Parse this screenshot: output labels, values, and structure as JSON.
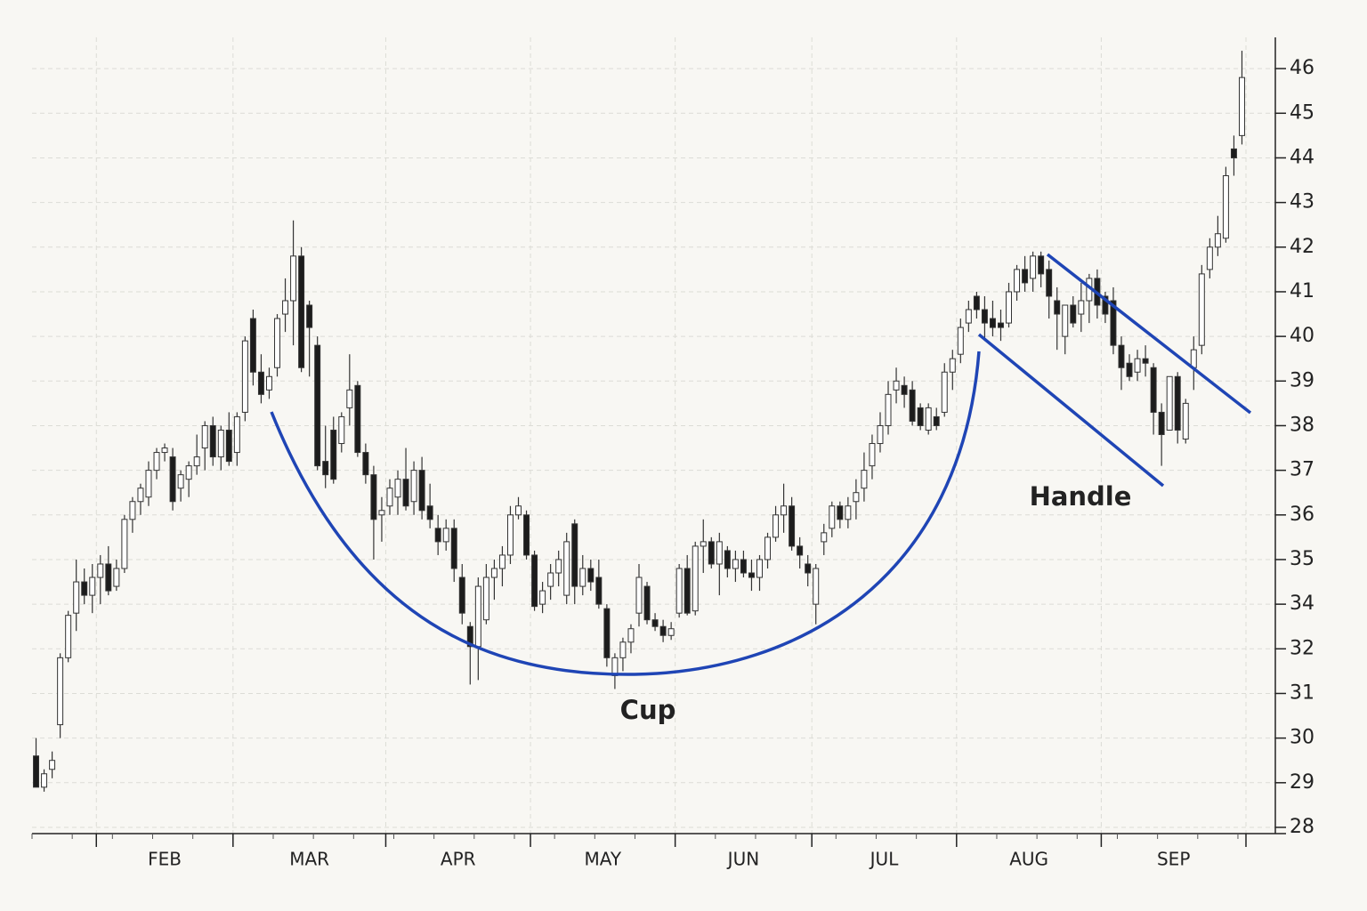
{
  "chart_data": {
    "type": "candlestick",
    "annotations": [
      "Cup",
      "Handle"
    ],
    "categories": [
      null,
      null,
      null,
      null,
      null,
      null,
      null,
      null,
      "FEB",
      "FEB",
      "FEB",
      "FEB",
      "FEB",
      "FEB",
      "FEB",
      "FEB",
      "FEB",
      "FEB",
      "FEB",
      "FEB",
      "FEB",
      "FEB",
      "FEB",
      "FEB",
      "FEB",
      "MAR",
      "MAR",
      "MAR",
      "MAR",
      "MAR",
      "MAR",
      "MAR",
      "MAR",
      "MAR",
      "MAR",
      "MAR",
      "MAR",
      "MAR",
      "MAR",
      "MAR",
      "MAR",
      "MAR",
      "MAR",
      "MAR",
      "APR",
      "APR",
      "APR",
      "APR",
      "APR",
      "APR",
      "APR",
      "APR",
      "APR",
      "APR",
      "APR",
      "APR",
      "APR",
      "APR",
      "APR",
      "APR",
      "APR",
      "APR",
      "MAY",
      "MAY",
      "MAY",
      "MAY",
      "MAY",
      "MAY",
      "MAY",
      "MAY",
      "MAY",
      "MAY",
      "MAY",
      "MAY",
      "MAY",
      "MAY",
      "MAY",
      "MAY",
      "MAY",
      "MAY",
      "JUN",
      "JUN",
      "JUN",
      "JUN",
      "JUN",
      "JUN",
      "JUN",
      "JUN",
      "JUN",
      "JUN",
      "JUN",
      "JUN",
      "JUN",
      "JUN",
      "JUN",
      "JUN",
      "JUN",
      "JUL",
      "JUL",
      "JUL",
      "JUL",
      "JUL",
      "JUL",
      "JUL",
      "JUL",
      "JUL",
      "JUL",
      "JUL",
      "JUL",
      "JUL",
      "JUL",
      "JUL",
      "JUL",
      "JUL",
      "JUL",
      "AUG",
      "AUG",
      "AUG",
      "AUG",
      "AUG",
      "AUG",
      "AUG",
      "AUG",
      "AUG",
      "AUG",
      "AUG",
      "AUG",
      "AUG",
      "AUG",
      "AUG",
      "AUG",
      "AUG",
      "AUG",
      "SEP",
      "SEP",
      "SEP",
      "SEP",
      "SEP",
      "SEP",
      "SEP",
      "SEP",
      "SEP",
      "SEP",
      "SEP",
      "SEP",
      "SEP",
      "SEP",
      "SEP",
      "SEP",
      "SEP",
      "SEP"
    ],
    "open": [
      29.6,
      28.9,
      29.3,
      30.3,
      31.8,
      33.6,
      34.5,
      34.2,
      34.6,
      34.9,
      34.4,
      34.8,
      35.9,
      36.3,
      36.4,
      37,
      37.4,
      37.3,
      36.6,
      36.8,
      37.1,
      37.5,
      38,
      37.3,
      37.9,
      37.4,
      38.3,
      40.4,
      39.2,
      38.8,
      39.3,
      40.5,
      40.8,
      41.8,
      40.7,
      39.8,
      37.2,
      37.9,
      37.6,
      38.4,
      38.9,
      37.4,
      36.9,
      36,
      36.2,
      36.4,
      36.8,
      36.3,
      37.0,
      36.2,
      35.7,
      35.4,
      35.7,
      34.6,
      33,
      32.1,
      33.3,
      34.6,
      34.8,
      35.1,
      36,
      36,
      35.1,
      34,
      34.4,
      34.7,
      34.2,
      35.8,
      34.4,
      34.8,
      34.6,
      33.8,
      31.4,
      31.8,
      32.3,
      33.6,
      34.4,
      33.3,
      33.0,
      32.6,
      33.6,
      34.8,
      33.7,
      35.3,
      35.4,
      34.9,
      35.2,
      34.8,
      35,
      34.7,
      34.6,
      35,
      35.5,
      36.0,
      36.2,
      35.3,
      34.9,
      34.0,
      35.4,
      35.7,
      36.2,
      35.9,
      36.3,
      36.6,
      37.1,
      37.6,
      38,
      38.8,
      38.9,
      38.8,
      38.4,
      37.9,
      38.2,
      38.3,
      39.2,
      39.6,
      40.3,
      40.9,
      40.6,
      40.4,
      40.3,
      40.3,
      41.0,
      41.5,
      41.3,
      41.8,
      41.5,
      40.8,
      40.0,
      40.7,
      40.5,
      40.8,
      41.3,
      40.9,
      40.8,
      39.8,
      39.4,
      39.2,
      39.5,
      39.3,
      38.3,
      37.9,
      39.1,
      37.7,
      39.3,
      39.8,
      41.5,
      42,
      42.2,
      44.2,
      44.5
    ],
    "high": [
      30,
      29.3,
      29.7,
      31.9,
      33.7,
      35,
      34.8,
      34.9,
      35.1,
      35.3,
      35,
      36,
      36.4,
      36.7,
      37.2,
      37.5,
      37.6,
      37.5,
      37,
      37.2,
      37.8,
      38.1,
      38.2,
      38,
      38.3,
      38.3,
      40.0,
      40.6,
      39.6,
      39.3,
      40.5,
      41.3,
      42.6,
      42,
      40.8,
      40,
      38,
      38.2,
      38.3,
      39.6,
      39,
      37.6,
      37.1,
      36.4,
      36.8,
      37,
      37.5,
      37.2,
      37.3,
      36.7,
      36,
      35.9,
      35.9,
      34.9,
      33.2,
      34.6,
      34.9,
      35,
      35.3,
      36.2,
      36.4,
      36.1,
      35.2,
      34.5,
      34.9,
      35.2,
      35.6,
      35.9,
      35.1,
      35.0,
      35,
      34,
      31.9,
      32.5,
      33.1,
      34.9,
      34.5,
      33.6,
      33.3,
      33.2,
      34.9,
      35.1,
      35.4,
      35.9,
      35.5,
      35.6,
      35.3,
      35.2,
      35.2,
      35,
      35.1,
      35.6,
      36.2,
      36.7,
      36.4,
      35.5,
      35.1,
      34.9,
      35.8,
      36.3,
      36.3,
      36.4,
      36.8,
      37.4,
      37.8,
      38.3,
      39.0,
      39.3,
      39.1,
      39.0,
      38.5,
      38.5,
      38.4,
      39.4,
      39.7,
      40.4,
      40.8,
      41.0,
      40.9,
      40.8,
      40.6,
      41.2,
      41.6,
      41.8,
      41.9,
      41.9,
      41.7,
      41.1,
      40.7,
      40.9,
      41.2,
      41.4,
      41.5,
      41.0,
      41.1,
      40.0,
      39.6,
      39.7,
      39.8,
      39.4,
      38.5,
      39.1,
      39.2,
      38.6,
      40.0,
      41.6,
      42.2,
      42.7,
      43.8,
      44.5,
      46.4
    ],
    "low": [
      29,
      28.8,
      29.1,
      30,
      31.7,
      32.8,
      34,
      33.6,
      34,
      34.2,
      34.3,
      34.7,
      35.6,
      36,
      36.2,
      36.8,
      37.2,
      36.1,
      36.3,
      36.4,
      36.9,
      37.0,
      37.1,
      37,
      37.1,
      37.1,
      38.1,
      38.9,
      38.5,
      38.6,
      39.1,
      40.1,
      39.8,
      39.2,
      39.1,
      37.0,
      36.6,
      36.7,
      37.4,
      38,
      37.3,
      36.7,
      35,
      35.4,
      36,
      36,
      36.1,
      36,
      35.9,
      35.7,
      35.1,
      35.2,
      34.5,
      33.1,
      31.2,
      31.3,
      33.1,
      34.1,
      34.4,
      34.9,
      35.9,
      35,
      33.7,
      33.6,
      34.1,
      34.4,
      34,
      34,
      34.2,
      34.3,
      33.8,
      31.6,
      31.1,
      31.5,
      31.9,
      33,
      33.1,
      32.8,
      32.3,
      32.4,
      33.4,
      33.5,
      33.5,
      34.7,
      34.8,
      34.2,
      34.6,
      34.5,
      34.6,
      34.3,
      34.3,
      34.8,
      35.4,
      35.6,
      35.2,
      34.8,
      34.4,
      33.1,
      35.1,
      35.5,
      35.7,
      35.7,
      35.9,
      36.3,
      36.8,
      37.4,
      37.8,
      38.5,
      38.4,
      38.0,
      37.9,
      37.8,
      37.9,
      38.2,
      38.8,
      39.4,
      40.1,
      40.4,
      39.9,
      40,
      39.9,
      40.2,
      40.8,
      41.0,
      41,
      41.1,
      40.4,
      39.7,
      39.6,
      40.2,
      40.1,
      40.3,
      40.4,
      40.3,
      39.6,
      38.8,
      39,
      39.0,
      39.1,
      37.8,
      37.1,
      37.9,
      37.6,
      37.6,
      38.8,
      39.6,
      41.3,
      41.8,
      42.1,
      43.6,
      44.3
    ],
    "close": [
      28.9,
      29.2,
      29.5,
      31.8,
      33.5,
      34.5,
      34.2,
      34.6,
      34.9,
      34.3,
      34.8,
      35.9,
      36.3,
      36.6,
      37.0,
      37.4,
      37.5,
      36.3,
      36.9,
      37.1,
      37.3,
      38.0,
      37.3,
      37.9,
      37.2,
      38.2,
      39.9,
      39.2,
      38.7,
      39.1,
      40.4,
      40.8,
      41.8,
      39.3,
      40.2,
      37.1,
      36.9,
      36.8,
      38.2,
      38.8,
      37.4,
      36.9,
      35.9,
      36.1,
      36.6,
      36.8,
      36.2,
      37.0,
      36.1,
      35.9,
      35.4,
      35.7,
      34.8,
      33.6,
      32.1,
      34.4,
      34.6,
      34.8,
      35.1,
      36.0,
      36.2,
      35.1,
      33.9,
      34.3,
      34.7,
      35,
      35.4,
      34.4,
      34.8,
      34.5,
      34.0,
      31.8,
      31.8,
      32.3,
      32.9,
      34.6,
      33.3,
      33.0,
      32.6,
      32.9,
      34.8,
      33.6,
      35.3,
      35.4,
      34.9,
      35.4,
      34.8,
      35.0,
      34.7,
      34.6,
      35.0,
      35.5,
      36.0,
      36.2,
      35.3,
      35.1,
      34.7,
      34.8,
      35.6,
      36.2,
      35.9,
      36.2,
      36.5,
      37.0,
      37.6,
      38.0,
      38.7,
      39,
      38.7,
      38.1,
      38.0,
      38.4,
      38.0,
      39.2,
      39.5,
      40.2,
      40.6,
      40.6,
      40.3,
      40.2,
      40.2,
      41.0,
      41.5,
      41.2,
      41.8,
      41.4,
      40.9,
      40.5,
      40.7,
      40.3,
      40.8,
      41.3,
      40.7,
      40.5,
      39.8,
      39.3,
      39.1,
      39.5,
      39.4,
      38.3,
      37.8,
      39.1,
      37.9,
      38.5,
      39.7,
      41.4,
      42.0,
      42.3,
      43.6,
      44.0,
      45.8
    ],
    "up_color": "#ffffff",
    "down_color": "#1c1c1c",
    "annotation_color": "#1f45b5",
    "ylim": [
      27.86,
      46.7
    ],
    "yticks": [
      28,
      29,
      30,
      31,
      32,
      34,
      35,
      36,
      37,
      38,
      39,
      40,
      41,
      42,
      43,
      44,
      45,
      46
    ],
    "grid": true
  }
}
